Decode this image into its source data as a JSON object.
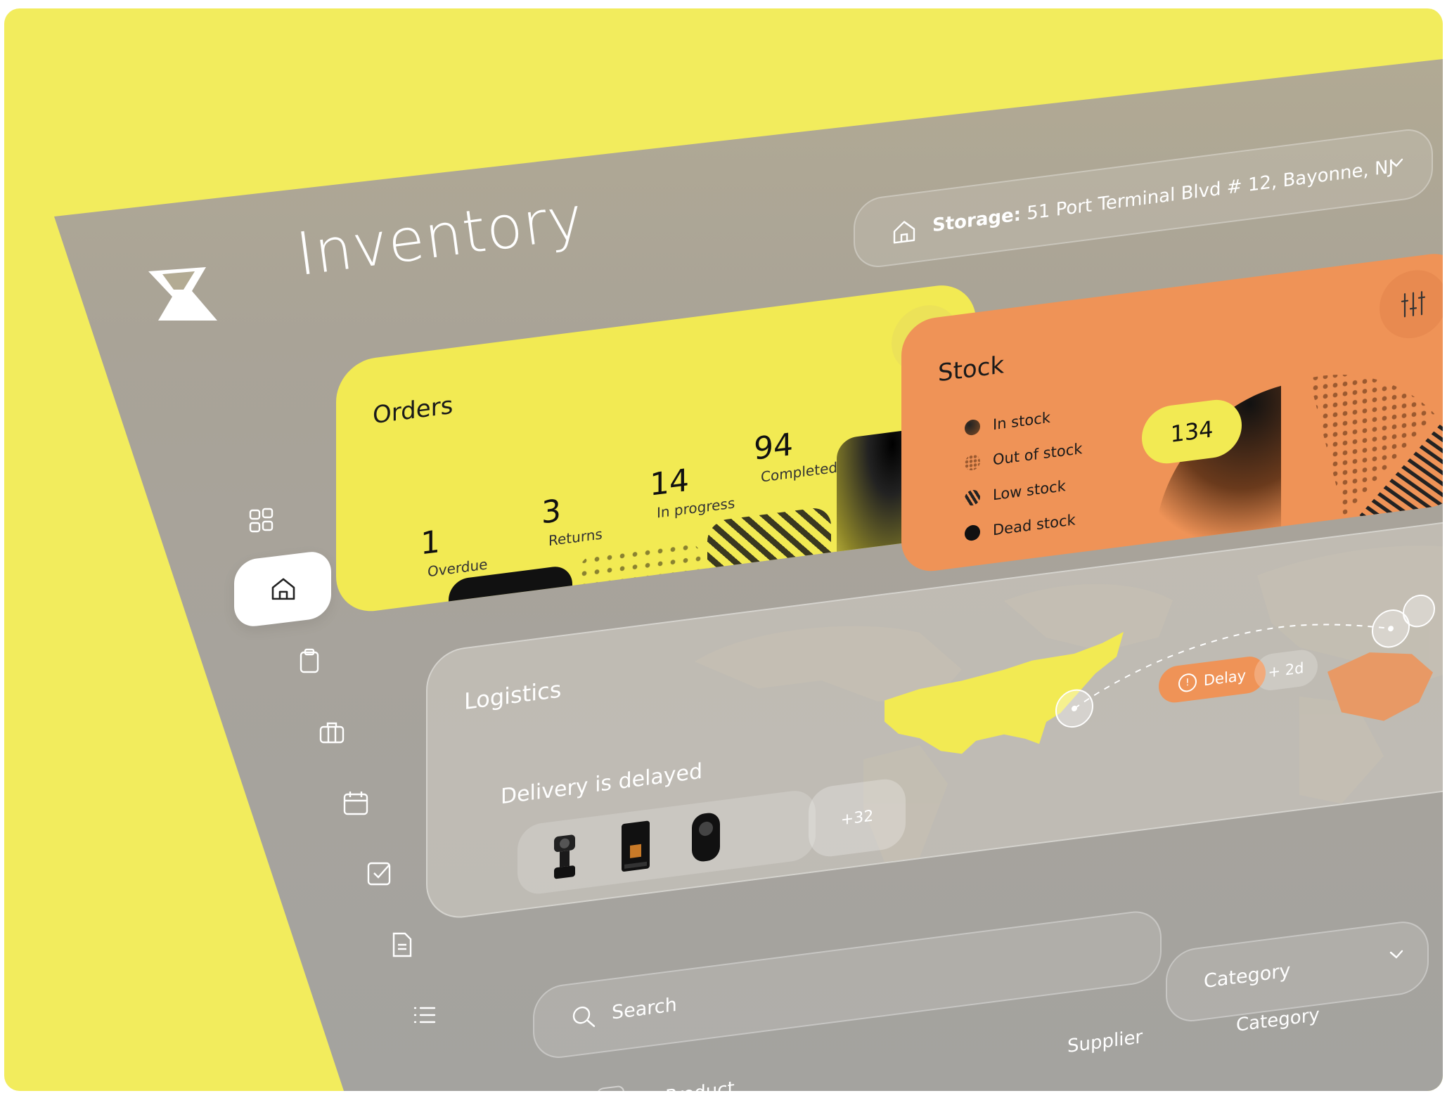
{
  "app": {
    "title": "Inventory",
    "brand_color": "#f2ea53",
    "accent_color": "#ef9357",
    "logo_icon": "hourglass-logo-icon"
  },
  "storage": {
    "label_bold": "Storage:",
    "address": "51 Port Terminal Blvd # 12, Bayonne, NJ",
    "icon": "house-icon"
  },
  "sidebar": {
    "items": [
      {
        "icon": "grid-icon"
      },
      {
        "icon": "home-icon",
        "active": true
      },
      {
        "icon": "clipboard-icon"
      },
      {
        "icon": "briefcase-icon"
      },
      {
        "icon": "calendar-icon"
      },
      {
        "icon": "checkbox-icon"
      },
      {
        "icon": "document-icon"
      },
      {
        "icon": "list-icon"
      }
    ]
  },
  "orders": {
    "title": "Orders",
    "stats": [
      {
        "value": "1",
        "label": "Overdue"
      },
      {
        "value": "3",
        "label": "Returns"
      },
      {
        "value": "14",
        "label": "In progress"
      },
      {
        "value": "94",
        "label": "Completed"
      }
    ]
  },
  "stock": {
    "title": "Stock",
    "total": "134",
    "legend": [
      {
        "label": "In stock"
      },
      {
        "label": "Out of stock"
      },
      {
        "label": "Low stock"
      },
      {
        "label": "Dead stock"
      }
    ]
  },
  "logistics": {
    "title": "Logistics",
    "subtitle": "Delivery is delayed",
    "more_count": "+32",
    "delay_label": "Delay",
    "delay_extra": "+ 2d",
    "products": [
      "camera-gimbal",
      "coffee-machine",
      "360-camera"
    ]
  },
  "search": {
    "placeholder": "Search"
  },
  "filters": {
    "category_label": "Category"
  },
  "table": {
    "columns": [
      "Product",
      "Supplier",
      "Category"
    ]
  }
}
